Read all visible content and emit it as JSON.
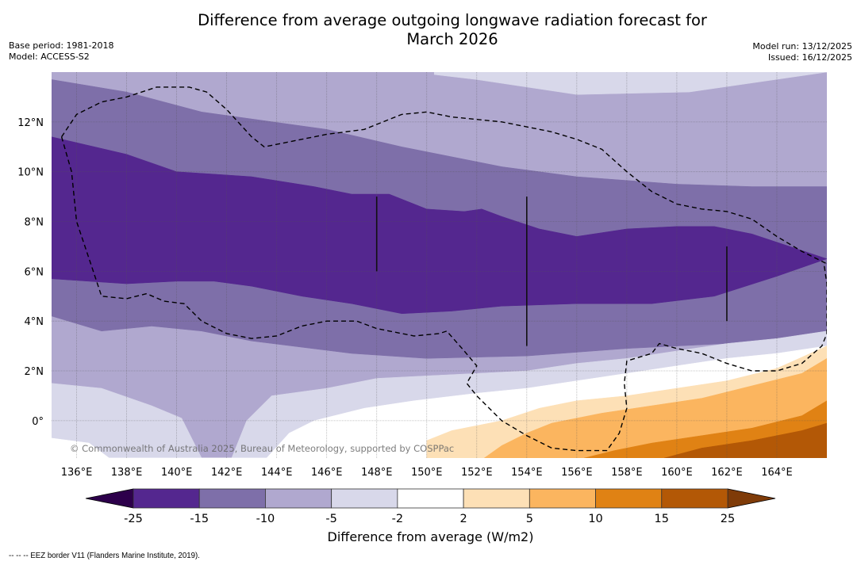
{
  "title": "Difference from average outgoing longwave radiation forecast for\nMarch 2026",
  "title_lines": [
    "Difference from average outgoing longwave radiation forecast for",
    "March 2026"
  ],
  "meta_left": {
    "base_period": "Base period: 1981-2018",
    "model": "Model: ACCESS-S2"
  },
  "meta_right": {
    "model_run": "Model run: 13/12/2025",
    "issued": "Issued: 16/12/2025"
  },
  "copyright": "© Commonwealth of Australia 2025, Bureau of Meteorology, supported by COSPPac",
  "footer_note": "--  --  -- EEZ border V11 (Flanders Marine Institute, 2019).",
  "chart_data": {
    "type": "heatmap",
    "subtype": "filled-contour map",
    "title": "Difference from average outgoing longwave radiation forecast for March 2026",
    "extent": {
      "lon": [
        135,
        166
      ],
      "lat": [
        -1.5,
        14
      ]
    },
    "x_ticks": [
      136,
      138,
      140,
      142,
      144,
      146,
      148,
      150,
      152,
      154,
      156,
      158,
      160,
      162,
      164
    ],
    "x_tick_labels": [
      "136°E",
      "138°E",
      "140°E",
      "142°E",
      "144°E",
      "146°E",
      "148°E",
      "150°E",
      "152°E",
      "154°E",
      "156°E",
      "158°E",
      "160°E",
      "162°E",
      "164°E"
    ],
    "y_ticks": [
      0,
      2,
      4,
      6,
      8,
      10,
      12
    ],
    "y_tick_labels": [
      "0°",
      "2°N",
      "4°N",
      "6°N",
      "8°N",
      "10°N",
      "12°N"
    ],
    "grid": true,
    "colorbar": {
      "label": "Difference from average (W/m2)",
      "boundaries": [
        -25,
        -15,
        -10,
        -5,
        -2,
        2,
        5,
        10,
        15,
        25
      ],
      "tick_labels": [
        "-25",
        "-15",
        "-10",
        "-5",
        "-2",
        "2",
        "5",
        "10",
        "15",
        "25"
      ],
      "colors": [
        "#54278f",
        "#7e6fa9",
        "#b0a8cf",
        "#d8d8ea",
        "#ffffff",
        "#fde0b6",
        "#fbb55f",
        "#e08214",
        "#b35806"
      ],
      "extend_low_color": "#2d004b",
      "extend_high_color": "#7f3b08",
      "placement": "bottom"
    },
    "bands": [
      {
        "range": [
          -10,
          -5
        ],
        "color": "#b0a8cf",
        "poly": [
          [
            135,
            14
          ],
          [
            166,
            14
          ],
          [
            166,
            -1.5
          ],
          [
            135,
            -1.5
          ]
        ]
      },
      {
        "range": [
          -5,
          -2
        ],
        "color": "#d8d8ea",
        "poly": [
          [
            150.3,
            14
          ],
          [
            166,
            14
          ],
          [
            160.5,
            13.2
          ],
          [
            156,
            13.1
          ],
          [
            152,
            13.7
          ],
          [
            150.3,
            13.9
          ]
        ]
      },
      {
        "range": [
          -15,
          -10
        ],
        "color": "#7e6fa9",
        "poly": [
          [
            135,
            13.7
          ],
          [
            138,
            13.2
          ],
          [
            141,
            12.4
          ],
          [
            146,
            11.7
          ],
          [
            149,
            11.0
          ],
          [
            153,
            10.2
          ],
          [
            156,
            9.8
          ],
          [
            160,
            9.5
          ],
          [
            163,
            9.4
          ],
          [
            166,
            9.4
          ],
          [
            166,
            3.4
          ],
          [
            162,
            3.1
          ],
          [
            158,
            2.9
          ],
          [
            154,
            2.6
          ],
          [
            150,
            2.5
          ],
          [
            147,
            2.7
          ],
          [
            143,
            3.2
          ],
          [
            141,
            3.6
          ],
          [
            139,
            3.8
          ],
          [
            137,
            3.6
          ],
          [
            135,
            4.2
          ]
        ]
      },
      {
        "range": [
          -25,
          -15
        ],
        "color": "#54278f",
        "poly": [
          [
            135,
            11.4
          ],
          [
            138,
            10.7
          ],
          [
            140,
            10.0
          ],
          [
            141.5,
            9.9
          ],
          [
            143,
            9.8
          ],
          [
            145.5,
            9.4
          ],
          [
            147,
            9.1
          ],
          [
            148.5,
            9.1
          ],
          [
            150,
            8.5
          ],
          [
            151.5,
            8.4
          ],
          [
            152.2,
            8.5
          ],
          [
            153,
            8.2
          ],
          [
            154.5,
            7.7
          ],
          [
            156,
            7.4
          ],
          [
            158,
            7.7
          ],
          [
            160,
            7.8
          ],
          [
            161.5,
            7.8
          ],
          [
            163,
            7.5
          ],
          [
            166,
            6.5
          ],
          [
            164,
            5.8
          ],
          [
            161.5,
            5.0
          ],
          [
            159,
            4.7
          ],
          [
            156,
            4.7
          ],
          [
            153,
            4.6
          ],
          [
            151,
            4.4
          ],
          [
            149,
            4.3
          ],
          [
            147,
            4.7
          ],
          [
            145,
            5.0
          ],
          [
            143,
            5.4
          ],
          [
            141.5,
            5.6
          ],
          [
            140,
            5.6
          ],
          [
            138,
            5.5
          ],
          [
            135,
            5.7
          ]
        ]
      },
      {
        "range": [
          -5,
          -2
        ],
        "color": "#d8d8ea",
        "poly": [
          [
            135,
            1.5
          ],
          [
            137,
            1.3
          ],
          [
            139,
            0.6
          ],
          [
            140.2,
            0.1
          ],
          [
            141,
            -1.5
          ],
          [
            142.2,
            -1.5
          ],
          [
            142.8,
            0
          ],
          [
            143.8,
            1.0
          ],
          [
            146,
            1.3
          ],
          [
            148,
            1.7
          ],
          [
            150,
            1.8
          ],
          [
            152,
            1.9
          ],
          [
            154,
            2.0
          ],
          [
            156,
            2.3
          ],
          [
            158,
            2.5
          ],
          [
            160,
            2.8
          ],
          [
            162,
            3.1
          ],
          [
            164,
            3.3
          ],
          [
            166,
            3.6
          ],
          [
            166,
            -1.5
          ],
          [
            135,
            -1.5
          ]
        ]
      },
      {
        "range": [
          -2,
          2
        ],
        "color": "#ffffff",
        "poly": [
          [
            135,
            -0.7
          ],
          [
            136.5,
            -0.9
          ],
          [
            137.3,
            -1.5
          ],
          [
            143.6,
            -1.5
          ],
          [
            144.5,
            -0.5
          ],
          [
            145.5,
            0
          ],
          [
            147.5,
            0.5
          ],
          [
            149.5,
            0.8
          ],
          [
            152,
            1.1
          ],
          [
            154,
            1.3
          ],
          [
            156,
            1.6
          ],
          [
            158,
            1.9
          ],
          [
            160,
            2.2
          ],
          [
            162,
            2.5
          ],
          [
            164,
            2.7
          ],
          [
            166,
            3.0
          ],
          [
            166,
            -1.5
          ],
          [
            135,
            -1.5
          ]
        ]
      },
      {
        "range": [
          2,
          5
        ],
        "color": "#fde0b6",
        "poly": [
          [
            150,
            -1.5
          ],
          [
            150,
            -0.8
          ],
          [
            151,
            -0.4
          ],
          [
            153,
            0
          ],
          [
            154.5,
            0.5
          ],
          [
            156,
            0.8
          ],
          [
            158,
            1.0
          ],
          [
            160,
            1.3
          ],
          [
            162,
            1.6
          ],
          [
            164,
            2.1
          ],
          [
            166,
            3.0
          ],
          [
            166,
            -1.5
          ]
        ]
      },
      {
        "range": [
          5,
          10
        ],
        "color": "#fbb55f",
        "poly": [
          [
            152.3,
            -1.5
          ],
          [
            153,
            -1.0
          ],
          [
            154,
            -0.5
          ],
          [
            155,
            -0.1
          ],
          [
            157,
            0.3
          ],
          [
            159,
            0.6
          ],
          [
            161,
            0.9
          ],
          [
            163,
            1.4
          ],
          [
            165,
            1.9
          ],
          [
            166,
            2.5
          ],
          [
            166,
            -1.5
          ]
        ]
      },
      {
        "range": [
          10,
          15
        ],
        "color": "#e08214",
        "poly": [
          [
            156.3,
            -1.5
          ],
          [
            157.5,
            -1.2
          ],
          [
            159,
            -0.9
          ],
          [
            161,
            -0.6
          ],
          [
            163,
            -0.3
          ],
          [
            165,
            0.2
          ],
          [
            166,
            0.8
          ],
          [
            166,
            -1.5
          ]
        ]
      },
      {
        "range": [
          15,
          25
        ],
        "color": "#b35806",
        "poly": [
          [
            159.5,
            -1.5
          ],
          [
            161,
            -1.1
          ],
          [
            163,
            -0.8
          ],
          [
            165,
            -0.4
          ],
          [
            166,
            -0.1
          ],
          [
            166,
            -1.5
          ]
        ]
      }
    ],
    "eez_border": [
      [
        [
          135.4,
          11.4
        ],
        [
          136,
          12.3
        ],
        [
          137,
          12.8
        ],
        [
          138,
          13.0
        ],
        [
          139.2,
          13.4
        ],
        [
          140.5,
          13.4
        ],
        [
          141.2,
          13.2
        ],
        [
          142,
          12.5
        ],
        [
          143,
          11.4
        ],
        [
          143.5,
          11.0
        ],
        [
          144.5,
          11.2
        ],
        [
          146,
          11.5
        ],
        [
          147.5,
          11.7
        ],
        [
          148,
          11.9
        ],
        [
          149,
          12.3
        ],
        [
          150,
          12.4
        ],
        [
          151,
          12.2
        ],
        [
          152,
          12.1
        ],
        [
          153,
          12.0
        ],
        [
          154,
          11.8
        ],
        [
          155,
          11.6
        ],
        [
          156,
          11.3
        ],
        [
          157,
          10.9
        ],
        [
          158,
          10.0
        ],
        [
          159,
          9.2
        ],
        [
          160,
          8.7
        ],
        [
          161,
          8.5
        ],
        [
          162,
          8.4
        ],
        [
          163,
          8.1
        ],
        [
          164,
          7.4
        ],
        [
          165,
          6.8
        ],
        [
          166,
          6.3
        ]
      ],
      [
        [
          135.4,
          11.4
        ],
        [
          135.8,
          10.0
        ],
        [
          136,
          8.0
        ],
        [
          136.5,
          6.5
        ],
        [
          137,
          5.0
        ],
        [
          138,
          4.9
        ],
        [
          138.8,
          5.1
        ],
        [
          139.5,
          4.8
        ],
        [
          140.3,
          4.7
        ],
        [
          141,
          4.0
        ],
        [
          142,
          3.5
        ],
        [
          143,
          3.3
        ],
        [
          144,
          3.4
        ],
        [
          145,
          3.8
        ],
        [
          146,
          4.0
        ],
        [
          147.2,
          4.0
        ],
        [
          148,
          3.7
        ],
        [
          149.5,
          3.4
        ],
        [
          150.5,
          3.5
        ],
        [
          150.8,
          3.6
        ],
        [
          151.5,
          2.8
        ],
        [
          152,
          2.2
        ],
        [
          151.6,
          1.5
        ],
        [
          152,
          1.0
        ],
        [
          153,
          0
        ],
        [
          154,
          -0.6
        ],
        [
          155,
          -1.1
        ],
        [
          156,
          -1.2
        ],
        [
          157.2,
          -1.2
        ],
        [
          157.7,
          -0.5
        ],
        [
          158,
          0.5
        ],
        [
          157.9,
          1.5
        ],
        [
          158,
          2.4
        ],
        [
          159,
          2.7
        ],
        [
          159.3,
          3.1
        ],
        [
          160,
          2.9
        ],
        [
          161,
          2.7
        ],
        [
          162,
          2.3
        ],
        [
          163,
          2.0
        ],
        [
          164,
          2.0
        ],
        [
          165,
          2.3
        ],
        [
          165.8,
          3.0
        ],
        [
          166,
          3.5
        ],
        [
          166,
          5.5
        ],
        [
          165.9,
          6.2
        ],
        [
          166,
          6.3
        ]
      ]
    ],
    "longitude_lines": [
      [
        148,
        6,
        9
      ],
      [
        154,
        3,
        9
      ],
      [
        162,
        4,
        7
      ]
    ]
  }
}
